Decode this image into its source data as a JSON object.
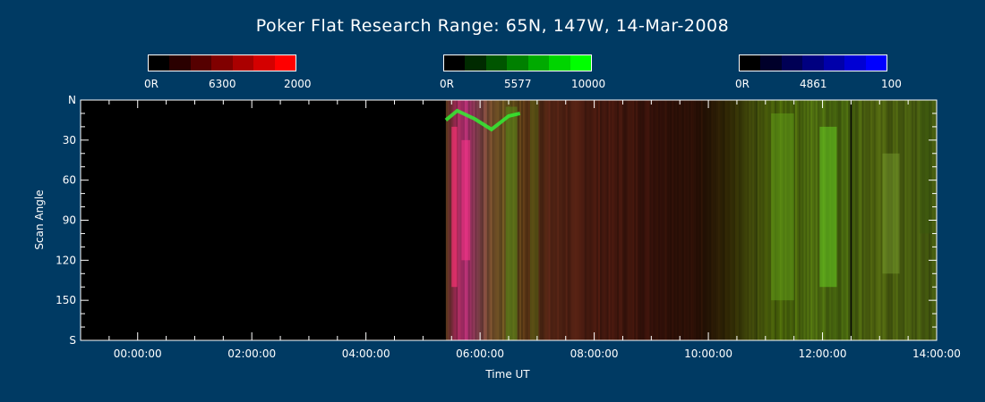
{
  "title": "Poker Flat Research Range: 65N, 147W, 14-Mar-2008",
  "colorbars": [
    {
      "label_left": "0R",
      "label_mid": "6300",
      "label_right": "2000",
      "colors": [
        "#000000",
        "#2a0000",
        "#550000",
        "#800000",
        "#aa0000",
        "#d40000",
        "#ff0000"
      ]
    },
    {
      "label_left": "0R",
      "label_mid": "5577",
      "label_right": "10000",
      "colors": [
        "#000000",
        "#002a00",
        "#005500",
        "#008000",
        "#00aa00",
        "#00d400",
        "#00ff00"
      ]
    },
    {
      "label_left": "0R",
      "label_mid": "4861",
      "label_right": "100",
      "colors": [
        "#000000",
        "#00002a",
        "#000055",
        "#000080",
        "#0000aa",
        "#0000d4",
        "#0000ff"
      ]
    }
  ],
  "chart_data": {
    "type": "heatmap",
    "title": "Poker Flat Research Range: 65N, 147W, 14-Mar-2008",
    "xlabel": "Time UT",
    "ylabel": "Scan Angle",
    "xlim_hours": [
      -1.0,
      14.0
    ],
    "ylim": [
      0,
      180
    ],
    "x_tick_hours": [
      0,
      2,
      4,
      6,
      8,
      10,
      12,
      14
    ],
    "x_tick_labels": [
      "00:00:00",
      "02:00:00",
      "04:00:00",
      "06:00:00",
      "08:00:00",
      "10:00:00",
      "12:00:00",
      "14:00:00"
    ],
    "y_tick_values": [
      0,
      30,
      60,
      90,
      120,
      150,
      180
    ],
    "y_tick_labels": [
      "N",
      "30",
      "60",
      "90",
      "120",
      "150",
      "S"
    ],
    "data_start_hour": 5.4,
    "emission_lines": [
      "6300",
      "5577",
      "4861"
    ],
    "data_gap_hours": [
      12.5
    ],
    "columns": [
      {
        "t": 5.4,
        "r": 90,
        "g": 55,
        "b": 30
      },
      {
        "t": 5.55,
        "r": 150,
        "g": 40,
        "b": 80
      },
      {
        "t": 5.75,
        "r": 170,
        "g": 45,
        "b": 110
      },
      {
        "t": 5.95,
        "r": 120,
        "g": 60,
        "b": 70
      },
      {
        "t": 6.2,
        "r": 110,
        "g": 75,
        "b": 40
      },
      {
        "t": 6.5,
        "r": 95,
        "g": 80,
        "b": 25
      },
      {
        "t": 6.8,
        "r": 85,
        "g": 50,
        "b": 20
      },
      {
        "t": 7.2,
        "r": 80,
        "g": 35,
        "b": 20
      },
      {
        "t": 8.0,
        "r": 70,
        "g": 25,
        "b": 15
      },
      {
        "t": 9.0,
        "r": 55,
        "g": 18,
        "b": 10
      },
      {
        "t": 9.8,
        "r": 40,
        "g": 15,
        "b": 5
      },
      {
        "t": 10.4,
        "r": 45,
        "g": 40,
        "b": 5
      },
      {
        "t": 10.8,
        "r": 60,
        "g": 70,
        "b": 10
      },
      {
        "t": 11.2,
        "r": 70,
        "g": 95,
        "b": 10
      },
      {
        "t": 11.8,
        "r": 75,
        "g": 105,
        "b": 15
      },
      {
        "t": 12.4,
        "r": 70,
        "g": 100,
        "b": 15
      },
      {
        "t": 12.8,
        "r": 75,
        "g": 95,
        "b": 15
      },
      {
        "t": 13.4,
        "r": 70,
        "g": 90,
        "b": 15
      },
      {
        "t": 14.0,
        "r": 65,
        "g": 85,
        "b": 15
      }
    ],
    "bright_arcs": [
      {
        "t": 5.55,
        "w": 0.1,
        "y0": 20,
        "y1": 140,
        "color": "#ff3377",
        "opacity": 0.65
      },
      {
        "t": 5.75,
        "w": 0.15,
        "y0": 30,
        "y1": 120,
        "color": "#ff3388",
        "opacity": 0.55
      },
      {
        "t": 6.55,
        "w": 0.2,
        "y0": 5,
        "y1": 180,
        "color": "#5a8a1a",
        "opacity": 0.55
      },
      {
        "t": 6.95,
        "w": 0.15,
        "y0": 0,
        "y1": 180,
        "color": "#5a6a14",
        "opacity": 0.5
      },
      {
        "t": 11.3,
        "w": 0.4,
        "y0": 10,
        "y1": 150,
        "color": "#5e9a18",
        "opacity": 0.55
      },
      {
        "t": 12.1,
        "w": 0.3,
        "y0": 20,
        "y1": 140,
        "color": "#66cc22",
        "opacity": 0.55
      },
      {
        "t": 13.2,
        "w": 0.3,
        "y0": 40,
        "y1": 130,
        "color": "#7aa030",
        "opacity": 0.45
      },
      {
        "t": 13.8,
        "w": 0.2,
        "y0": 0,
        "y1": 100,
        "color": "#3a5a10",
        "opacity": 0.4
      }
    ],
    "top_arc": [
      {
        "t": 5.4,
        "y": 15
      },
      {
        "t": 5.6,
        "y": 8
      },
      {
        "t": 5.9,
        "y": 14
      },
      {
        "t": 6.2,
        "y": 22
      },
      {
        "t": 6.5,
        "y": 12
      },
      {
        "t": 6.7,
        "y": 10
      }
    ]
  }
}
